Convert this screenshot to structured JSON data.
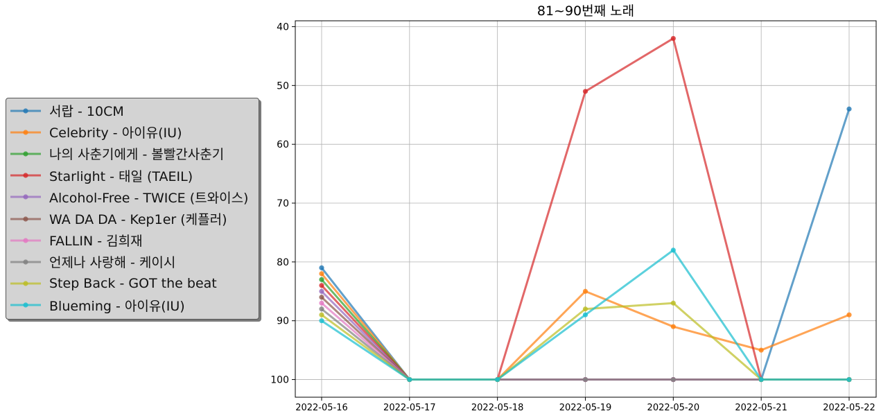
{
  "chart_data": {
    "type": "line",
    "title": "81~90번째 노래",
    "xlabel": "",
    "ylabel": "",
    "categories": [
      "2022-05-16",
      "2022-05-17",
      "2022-05-18",
      "2022-05-19",
      "2022-05-20",
      "2022-05-21",
      "2022-05-22"
    ],
    "ylim": [
      103,
      39
    ],
    "y_inverted": true,
    "y_ticks": [
      40,
      50,
      60,
      70,
      80,
      90,
      100
    ],
    "grid": true,
    "legend_position": "left-outside",
    "series": [
      {
        "name": "서랍 - 10CM",
        "color": "#1f77b4",
        "values": [
          81,
          100,
          100,
          100,
          100,
          100,
          54
        ]
      },
      {
        "name": "Celebrity - 아이유(IU)",
        "color": "#ff7f0e",
        "values": [
          82,
          100,
          100,
          85,
          91,
          95,
          89
        ]
      },
      {
        "name": "나의 사춘기에게 - 볼빨간사춘기",
        "color": "#2ca02c",
        "values": [
          83,
          100,
          100,
          100,
          100,
          100,
          100
        ]
      },
      {
        "name": "Starlight - 태일 (TAEIL)",
        "color": "#d62728",
        "values": [
          84,
          100,
          100,
          51,
          42,
          100,
          100
        ]
      },
      {
        "name": "Alcohol-Free - TWICE (트와이스)",
        "color": "#9467bd",
        "values": [
          85,
          100,
          100,
          100,
          100,
          100,
          100
        ]
      },
      {
        "name": "WA DA DA - Kep1er (케플러)",
        "color": "#8c564b",
        "values": [
          86,
          100,
          100,
          100,
          100,
          100,
          100
        ]
      },
      {
        "name": "FALLIN - 김희재",
        "color": "#e377c2",
        "values": [
          87,
          100,
          100,
          100,
          100,
          100,
          100
        ]
      },
      {
        "name": "언제나 사랑해 - 케이시",
        "color": "#7f7f7f",
        "values": [
          88,
          100,
          100,
          100,
          100,
          100,
          100
        ]
      },
      {
        "name": "Step Back - GOT the beat",
        "color": "#bcbd22",
        "values": [
          89,
          100,
          100,
          88,
          87,
          100,
          100
        ]
      },
      {
        "name": "Blueming - 아이유(IU)",
        "color": "#17becf",
        "values": [
          90,
          100,
          100,
          89,
          78,
          100,
          100
        ]
      }
    ]
  }
}
